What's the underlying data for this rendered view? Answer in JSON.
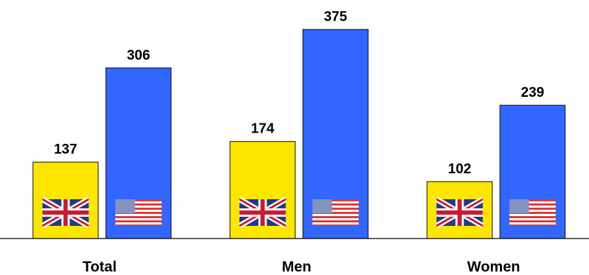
{
  "chart_data": {
    "type": "bar",
    "title": "",
    "xlabel": "",
    "ylabel": "",
    "categories": [
      "Total",
      "Men",
      "Women"
    ],
    "series": [
      {
        "values": [
          137,
          174,
          102
        ],
        "color": "#FFE600",
        "flag_icon": "uk-flag-icon"
      },
      {
        "values": [
          306,
          375,
          239
        ],
        "color": "#3366FF",
        "flag_icon": "us-flag-icon"
      }
    ],
    "ylim": [
      0,
      375
    ],
    "grid": false,
    "legend": "none",
    "data_labels": true
  }
}
